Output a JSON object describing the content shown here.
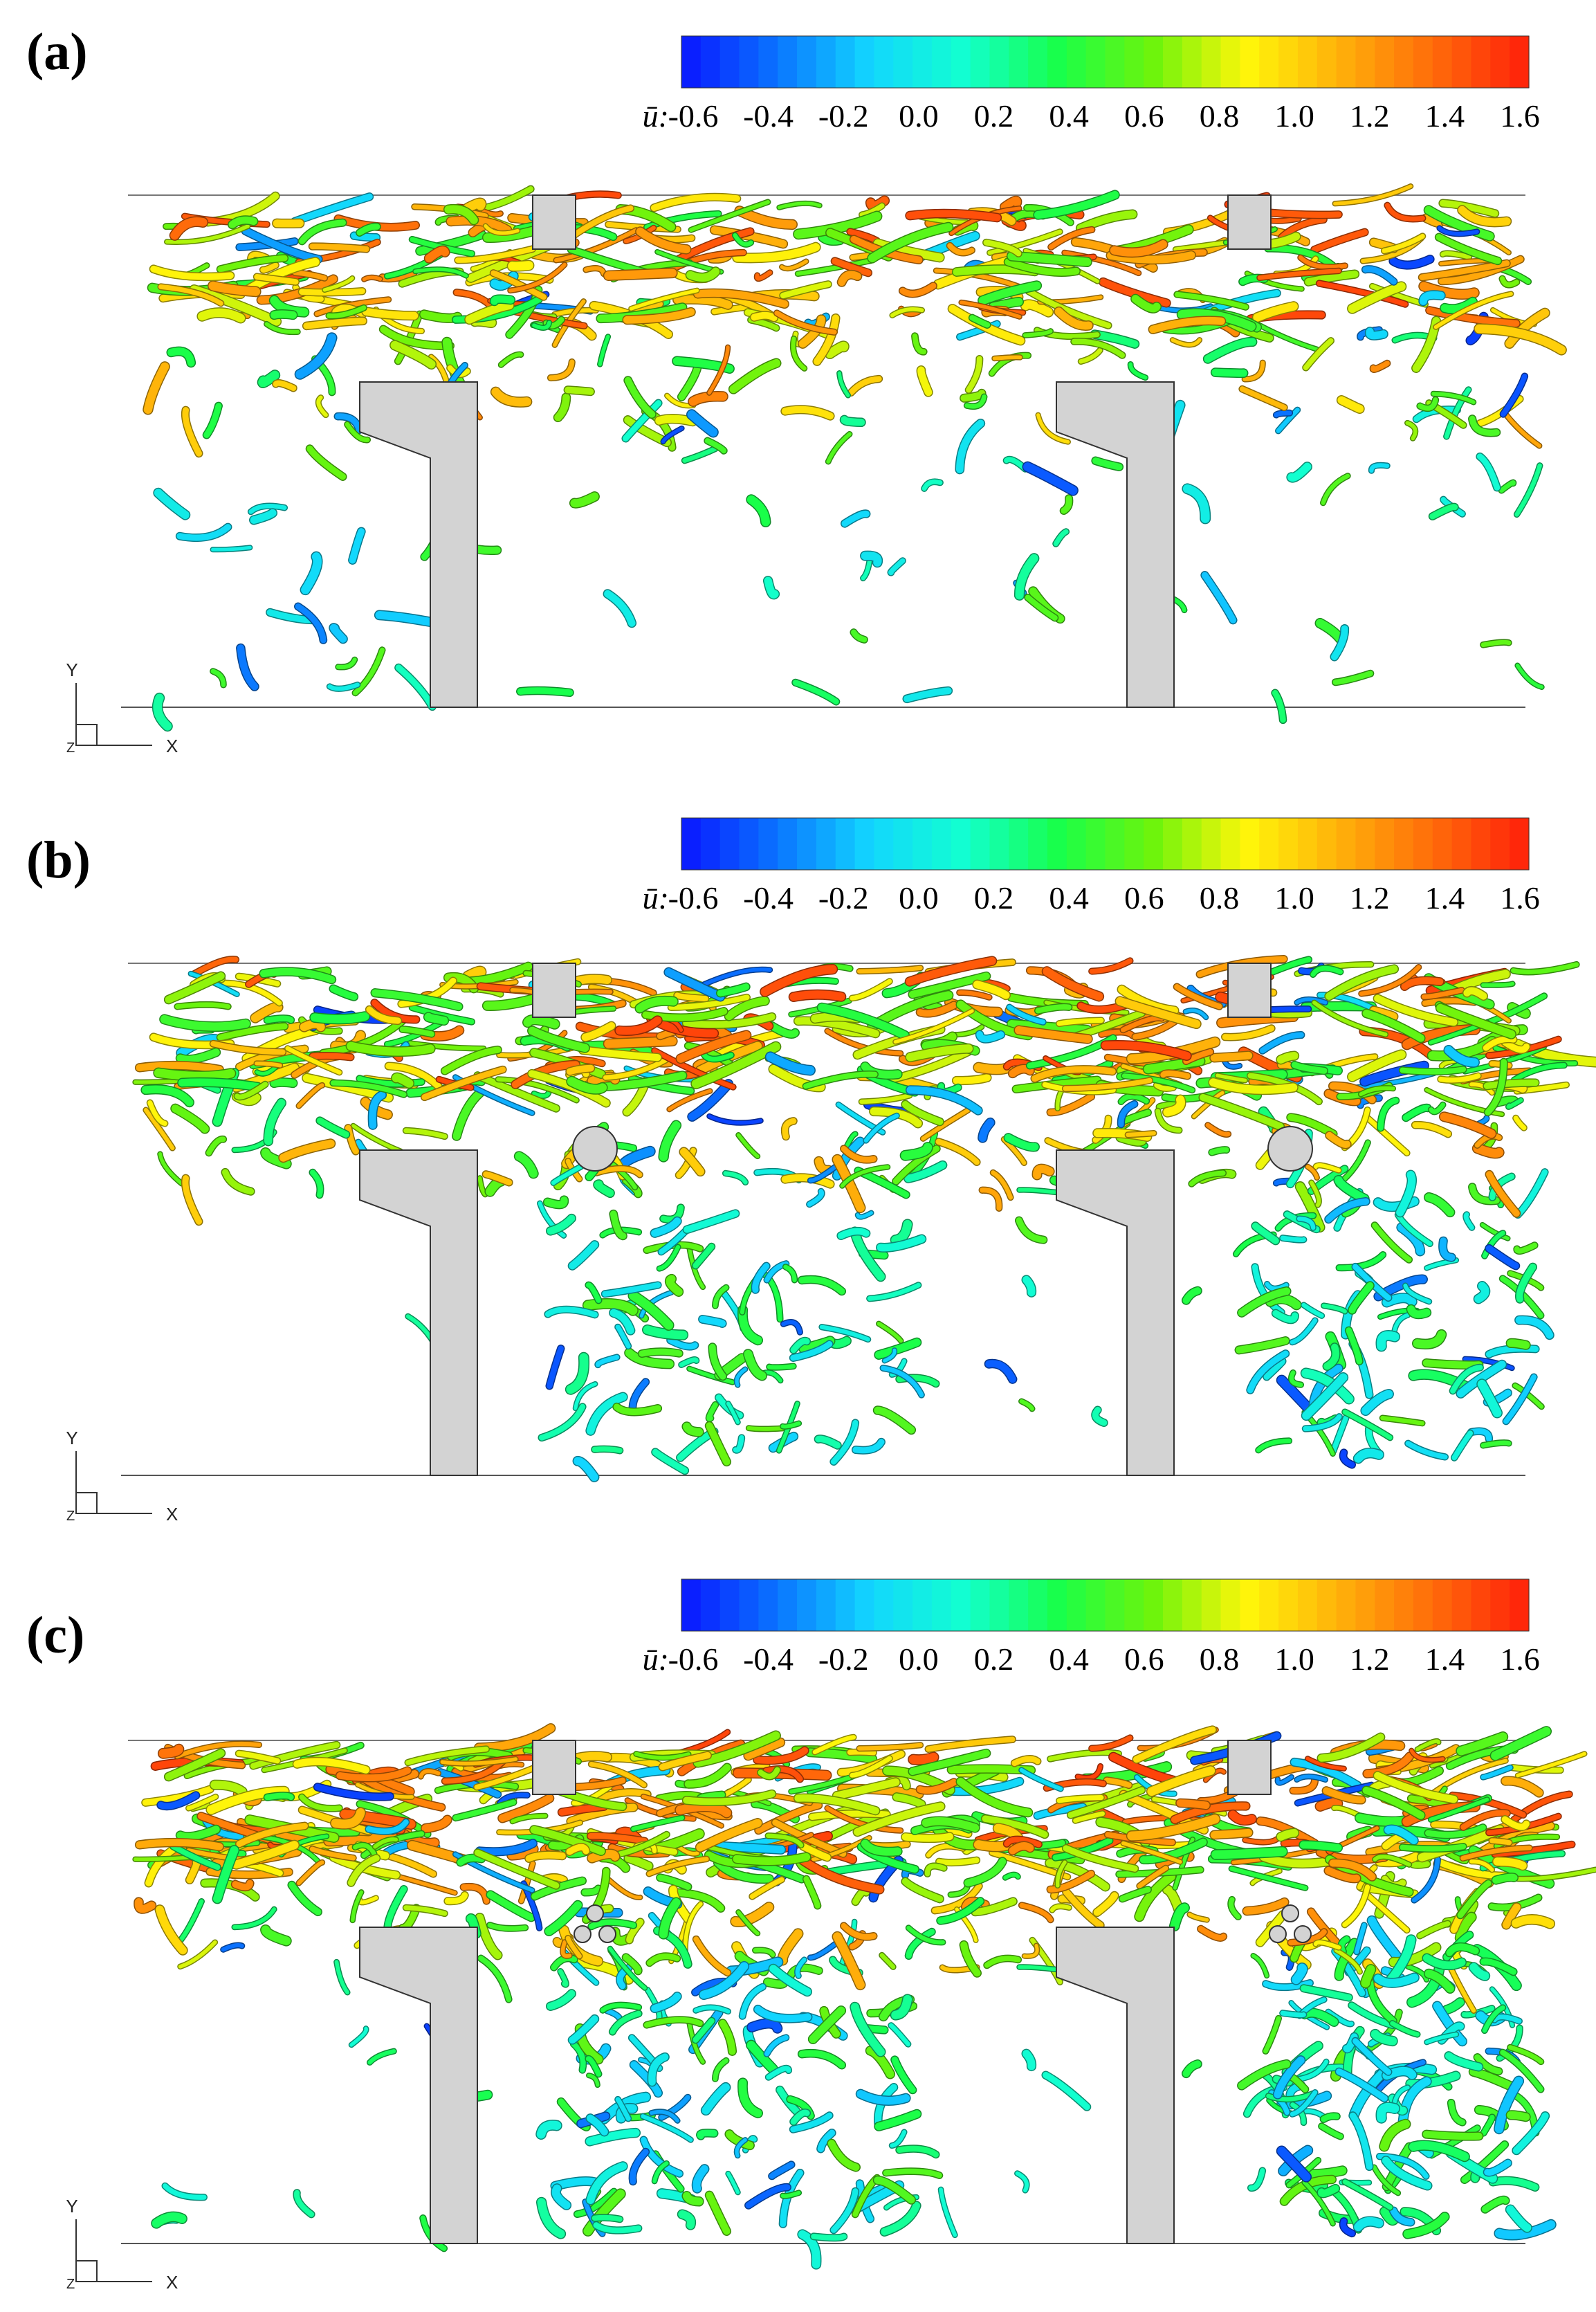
{
  "figure": {
    "panels": [
      {
        "label": "(a)",
        "cylinders": "none"
      },
      {
        "label": "(b)",
        "cylinders": "single"
      },
      {
        "label": "(c)",
        "cylinders": "triple"
      }
    ],
    "colorbar": {
      "variable": "ū:",
      "ticks": [
        "-0.6",
        "-0.4",
        "-0.2",
        "0.0",
        "0.2",
        "0.4",
        "0.6",
        "0.8",
        "1.0",
        "1.2",
        "1.4",
        "1.6"
      ],
      "range": [
        -0.6,
        1.6
      ],
      "colormap": [
        "#0a16ff",
        "#0a72ff",
        "#12d6ff",
        "#12ffd0",
        "#18ff4a",
        "#6cf40c",
        "#fff60a",
        "#ffb00a",
        "#ff6a0a",
        "#ff1f0a"
      ]
    },
    "axis_triad": {
      "y": "Y",
      "x": "X",
      "z": "Z"
    },
    "geometry_color": "#d3d3d3"
  }
}
